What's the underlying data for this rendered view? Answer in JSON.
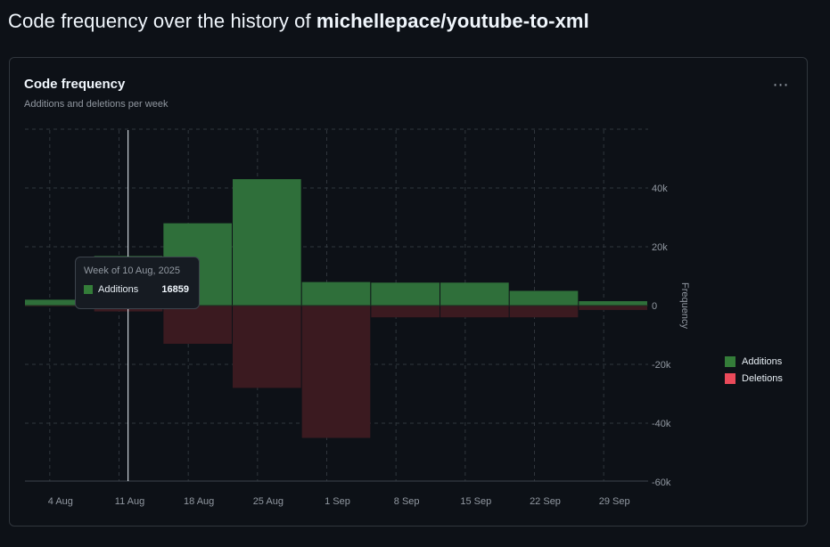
{
  "page": {
    "title_prefix": "Code frequency over the history of",
    "repo": "michellepace/youtube-to-xml"
  },
  "card": {
    "title": "Code frequency",
    "subtitle": "Additions and deletions per week",
    "more_icon": "kebab-horizontal-icon"
  },
  "tooltip": {
    "title": "Week of 10 Aug, 2025",
    "series": "Additions",
    "value": "16859"
  },
  "chart_data": {
    "type": "bar",
    "title": "Code frequency",
    "subtitle": "Additions and deletions per week",
    "xlabel": "",
    "ylabel": "Frequency",
    "ylim": [
      -60000,
      60000
    ],
    "x_ticks": [
      "4 Aug",
      "11 Aug",
      "18 Aug",
      "25 Aug",
      "1 Sep",
      "8 Sep",
      "15 Sep",
      "22 Sep",
      "29 Sep"
    ],
    "y_ticks": [
      {
        "value": 40000,
        "label": "40k"
      },
      {
        "value": 20000,
        "label": "20k"
      },
      {
        "value": 0,
        "label": "0"
      },
      {
        "value": -20000,
        "label": "-20k"
      },
      {
        "value": -40000,
        "label": "-40k"
      },
      {
        "value": -60000,
        "label": "-60k"
      }
    ],
    "weeks": [
      "3 Aug, 2025",
      "10 Aug, 2025",
      "17 Aug, 2025",
      "24 Aug, 2025",
      "31 Aug, 2025",
      "7 Sep, 2025",
      "14 Sep, 2025",
      "21 Sep, 2025",
      "28 Sep, 2025"
    ],
    "series": [
      {
        "name": "Additions",
        "color": "#347d39",
        "values": [
          2000,
          16859,
          28000,
          43000,
          8000,
          7800,
          7800,
          5000,
          1500
        ]
      },
      {
        "name": "Deletions",
        "color": "#ea4a5a",
        "values": [
          -200,
          -2000,
          -13000,
          -28000,
          -45000,
          -4000,
          -4000,
          -4000,
          -1500
        ]
      }
    ],
    "grid": true,
    "legend": "right",
    "highlight_week_index": 1
  }
}
